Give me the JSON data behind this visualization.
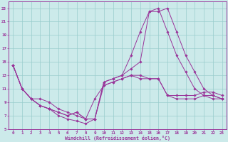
{
  "xlabel": "Windchill (Refroidissement éolien,°C)",
  "ylabel": "",
  "xlim": [
    -0.5,
    23.5
  ],
  "ylim": [
    5,
    24
  ],
  "yticks": [
    5,
    7,
    9,
    11,
    13,
    15,
    17,
    19,
    21,
    23
  ],
  "xticks": [
    0,
    1,
    2,
    3,
    4,
    5,
    6,
    7,
    8,
    9,
    10,
    11,
    12,
    13,
    14,
    15,
    16,
    17,
    18,
    19,
    20,
    21,
    22,
    23
  ],
  "bg_color": "#cceaea",
  "line_color": "#993399",
  "grid_color": "#99cccc",
  "series": [
    [
      14.5,
      11,
      9.5,
      8.5,
      8.0,
      7.0,
      6.5,
      6.2,
      5.8,
      6.5,
      11.5,
      12.0,
      12.5,
      13.0,
      12.5,
      12.5,
      12.5,
      10.0,
      9.5,
      9.5,
      9.5,
      10.0,
      10.0,
      9.5
    ],
    [
      14.5,
      11,
      9.5,
      8.5,
      8.0,
      7.5,
      7.0,
      7.5,
      6.5,
      6.5,
      12.0,
      12.5,
      13.0,
      16.0,
      19.5,
      22.5,
      22.5,
      23.0,
      19.5,
      16.0,
      13.5,
      11.0,
      10.0,
      9.5
    ],
    [
      14.5,
      11,
      9.5,
      8.5,
      8.0,
      7.5,
      7.0,
      7.5,
      6.5,
      6.5,
      12.0,
      12.5,
      13.0,
      14.0,
      15.0,
      22.5,
      23.0,
      19.5,
      16.0,
      13.5,
      11.0,
      10.0,
      9.5,
      9.5
    ],
    [
      14.5,
      11,
      9.5,
      9.5,
      9.0,
      8.0,
      7.5,
      7.0,
      6.5,
      9.5,
      11.5,
      12.0,
      12.5,
      13.0,
      13.0,
      12.5,
      12.5,
      10.0,
      10.0,
      10.0,
      10.0,
      10.5,
      10.5,
      10.0
    ]
  ],
  "tick_fontsize": 4.2,
  "xlabel_fontsize": 4.8,
  "tick_color": "#993399",
  "spine_color": "#993399"
}
